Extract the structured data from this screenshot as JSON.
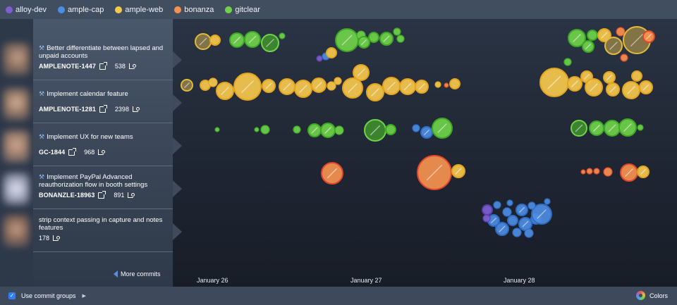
{
  "legend": [
    {
      "name": "alloy-dev",
      "color": "#7e5fd2"
    },
    {
      "name": "ample-cap",
      "color": "#4d8de3"
    },
    {
      "name": "ample-web",
      "color": "#f6c94e"
    },
    {
      "name": "bonanza",
      "color": "#f6924f"
    },
    {
      "name": "gitclear",
      "color": "#6fd34a"
    }
  ],
  "commits": [
    {
      "title": "Better differentiate between lapsed and unpaid accounts",
      "ticket": "AMPLENOTE-1447",
      "count": "538",
      "icon": "hammer-icon"
    },
    {
      "title": "Implement calendar feature",
      "ticket": "AMPLENOTE-1281",
      "count": "2398",
      "icon": "hammer-icon"
    },
    {
      "title": "Implement UX for new teams",
      "ticket": "GC-1844",
      "count": "968",
      "icon": "hammer-icon"
    },
    {
      "title": "Implement PayPal Advanced reauthorization flow in booth settings",
      "ticket": "BONANZLE-18963",
      "count": "891",
      "icon": "hammer-icon"
    },
    {
      "title": "strip context passing in capture and notes features",
      "ticket": "",
      "count": "178",
      "icon": ""
    }
  ],
  "more_commits_label": "More commits",
  "dates": [
    "January 26",
    "January 27",
    "January 28"
  ],
  "footer": {
    "groups_label": "Use commit groups",
    "colors_label": "Colors"
  }
}
